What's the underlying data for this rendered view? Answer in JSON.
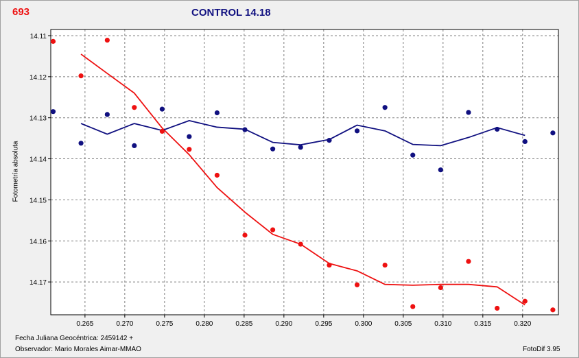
{
  "header": {
    "id_label": "693"
  },
  "footer": {
    "date_label": "Fecha Juliana Geocéntrica: 2459142 +",
    "observer_label": "Observador: Mario Morales Aimar-MMAO",
    "software_label": "FotoDif 3.95"
  },
  "colors": {
    "series_target": "#ee1111",
    "series_control": "#101080",
    "grid": "#808080"
  },
  "chart_data": {
    "type": "scatter",
    "title": "CONTROL 14.18",
    "xlabel": "",
    "ylabel": "Fotometría absoluta",
    "xlim": [
      0.2607,
      0.3245
    ],
    "ylim": [
      14.1085,
      14.178
    ],
    "y_inverted": true,
    "grid": true,
    "x_ticks": [
      0.265,
      0.27,
      0.275,
      0.28,
      0.285,
      0.29,
      0.295,
      0.3,
      0.305,
      0.31,
      0.315,
      0.32
    ],
    "x_tick_labels": [
      "0.265",
      "0.270",
      "0.275",
      "0.280",
      "0.285",
      "0.290",
      "0.295",
      "0.300",
      "0.305",
      "0.310",
      "0.315",
      "0.320"
    ],
    "y_ticks": [
      14.11,
      14.12,
      14.13,
      14.14,
      14.15,
      14.16,
      14.17
    ],
    "y_tick_labels": [
      "14.11",
      "14.12",
      "14.13",
      "14.14",
      "14.15",
      "14.16",
      "14.17"
    ],
    "series": [
      {
        "color": "#ee1111",
        "points": {
          "x": [
            0.261,
            0.2645,
            0.2678,
            0.2712,
            0.2747,
            0.2781,
            0.2816,
            0.2851,
            0.2886,
            0.2921,
            0.2957,
            0.2992,
            0.3027,
            0.3062,
            0.3097,
            0.3132,
            0.3168,
            0.3203,
            0.3238
          ],
          "y": [
            14.1114,
            14.1198,
            14.1111,
            14.1275,
            14.1333,
            14.1377,
            14.144,
            14.1586,
            14.1573,
            14.1608,
            14.1659,
            14.1707,
            14.1659,
            14.176,
            14.1714,
            14.165,
            14.1764,
            14.1747,
            14.1768
          ]
        },
        "trend": {
          "x": [
            0.2645,
            0.2678,
            0.2712,
            0.2747,
            0.2781,
            0.2816,
            0.2851,
            0.2886,
            0.2921,
            0.2957,
            0.2992,
            0.3027,
            0.3062,
            0.3097,
            0.3132,
            0.3168,
            0.3203
          ],
          "y": [
            14.1145,
            14.1192,
            14.124,
            14.1325,
            14.139,
            14.147,
            14.153,
            14.1584,
            14.1608,
            14.1655,
            14.1673,
            14.1706,
            14.1708,
            14.1706,
            14.1706,
            14.1712,
            14.1756
          ]
        }
      },
      {
        "color": "#101080",
        "points": {
          "x": [
            0.261,
            0.2645,
            0.2678,
            0.2712,
            0.2747,
            0.2781,
            0.2816,
            0.2851,
            0.2886,
            0.2921,
            0.2957,
            0.2992,
            0.3027,
            0.3062,
            0.3097,
            0.3132,
            0.3168,
            0.3203,
            0.3238
          ],
          "y": [
            14.1285,
            14.1362,
            14.1292,
            14.1368,
            14.1279,
            14.1346,
            14.1288,
            14.1329,
            14.1376,
            14.1372,
            14.1355,
            14.1332,
            14.1275,
            14.1391,
            14.1427,
            14.1287,
            14.1328,
            14.1358,
            14.1337
          ]
        },
        "trend": {
          "x": [
            0.2645,
            0.2678,
            0.2712,
            0.2747,
            0.2781,
            0.2816,
            0.2851,
            0.2886,
            0.2921,
            0.2957,
            0.2992,
            0.3027,
            0.3062,
            0.3097,
            0.3132,
            0.3168,
            0.3203
          ],
          "y": [
            14.1314,
            14.134,
            14.1314,
            14.1331,
            14.1307,
            14.1323,
            14.1328,
            14.136,
            14.1366,
            14.1353,
            14.1318,
            14.1332,
            14.1365,
            14.1368,
            14.1348,
            14.1324,
            14.1343
          ]
        }
      }
    ]
  }
}
